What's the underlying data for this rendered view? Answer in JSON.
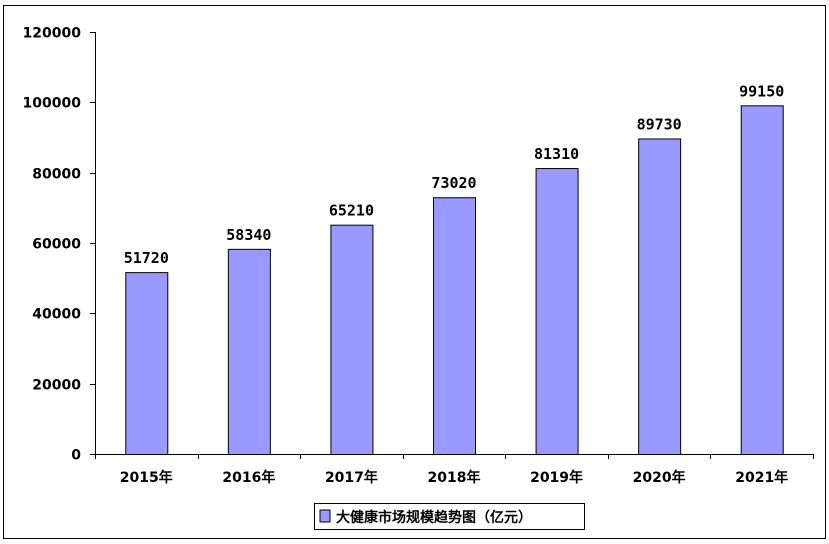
{
  "chart_data": {
    "type": "bar",
    "categories": [
      "2015年",
      "2016年",
      "2017年",
      "2018年",
      "2019年",
      "2020年",
      "2021年"
    ],
    "series": [
      {
        "name": "大健康市场规模趋势图（亿元）",
        "values": [
          51720,
          58340,
          65210,
          73020,
          81310,
          89730,
          99150
        ],
        "color": "#9999ff"
      }
    ],
    "ylim": [
      0,
      120000
    ],
    "yticks": [
      0,
      20000,
      40000,
      60000,
      80000,
      100000,
      120000
    ],
    "grid": false,
    "legend": "bottom",
    "data_labels": true
  }
}
